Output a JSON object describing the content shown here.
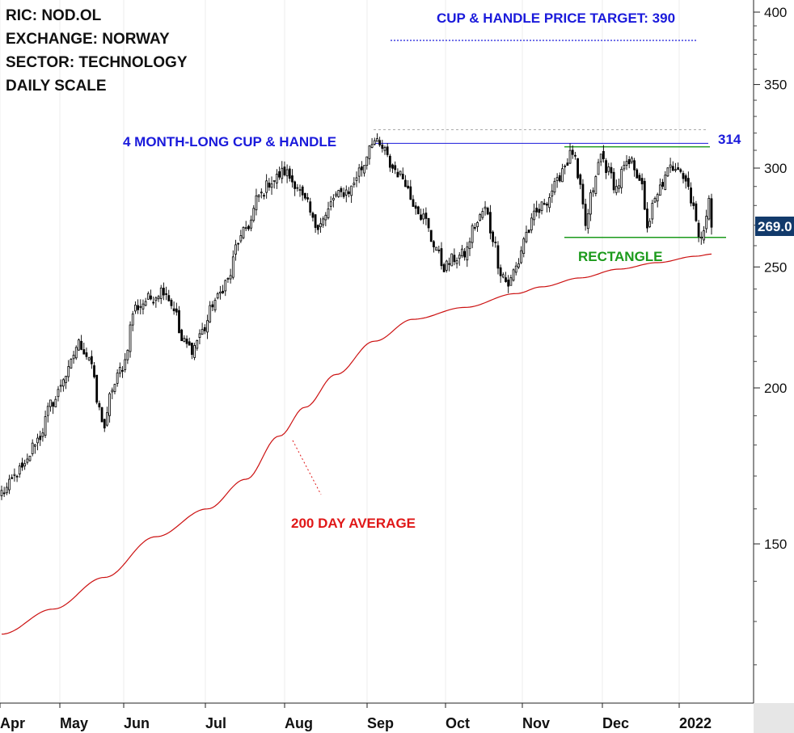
{
  "chart_data": {
    "type": "candlestick",
    "header_lines": [
      "RIC: NOD.OL",
      "EXCHANGE: NORWAY",
      "SECTOR: TECHNOLOGY",
      "DAILY SCALE"
    ],
    "y_scale": "log",
    "ylim": [
      115,
      410
    ],
    "y_ticks": [
      150,
      200,
      250,
      300,
      350,
      400
    ],
    "x_ticks": [
      "Apr",
      "May",
      "Jun",
      "Jul",
      "Aug",
      "Sep",
      "Oct",
      "Nov",
      "Dec",
      "2022"
    ],
    "last_price_label": "269.0",
    "annotations": {
      "price_target": "CUP & HANDLE PRICE TARGET: 390",
      "pattern": "4 MONTH-LONG CUP & HANDLE",
      "resistance_label": "314",
      "rectangle": "RECTANGLE",
      "moving_average": "200 DAY AVERAGE"
    },
    "levels": {
      "price_target": 390,
      "cup_resistance": 314,
      "rectangle_top": 312,
      "rectangle_bottom": 264,
      "high_reference": 322
    },
    "anchor_closes": [
      [
        0,
        165
      ],
      [
        8,
        172
      ],
      [
        14,
        182
      ],
      [
        20,
        195
      ],
      [
        25,
        205
      ],
      [
        30,
        217
      ],
      [
        34,
        212
      ],
      [
        38,
        192
      ],
      [
        40,
        186
      ],
      [
        43,
        200
      ],
      [
        47,
        208
      ],
      [
        52,
        232
      ],
      [
        58,
        236
      ],
      [
        63,
        240
      ],
      [
        67,
        232
      ],
      [
        70,
        218
      ],
      [
        74,
        215
      ],
      [
        78,
        222
      ],
      [
        83,
        235
      ],
      [
        88,
        244
      ],
      [
        92,
        262
      ],
      [
        96,
        270
      ],
      [
        100,
        285
      ],
      [
        105,
        293
      ],
      [
        110,
        298
      ],
      [
        114,
        292
      ],
      [
        118,
        282
      ],
      [
        122,
        270
      ],
      [
        125,
        273
      ],
      [
        130,
        285
      ],
      [
        135,
        288
      ],
      [
        140,
        300
      ],
      [
        144,
        316
      ],
      [
        148,
        311
      ],
      [
        152,
        300
      ],
      [
        156,
        295
      ],
      [
        160,
        282
      ],
      [
        164,
        274
      ],
      [
        168,
        261
      ],
      [
        172,
        250
      ],
      [
        176,
        254
      ],
      [
        180,
        256
      ],
      [
        184,
        270
      ],
      [
        188,
        278
      ],
      [
        191,
        264
      ],
      [
        194,
        248
      ],
      [
        197,
        242
      ],
      [
        200,
        250
      ],
      [
        204,
        266
      ],
      [
        208,
        276
      ],
      [
        212,
        283
      ],
      [
        215,
        290
      ],
      [
        219,
        302
      ],
      [
        222,
        309
      ],
      [
        225,
        288
      ],
      [
        227,
        270
      ],
      [
        230,
        289
      ],
      [
        233,
        307
      ],
      [
        236,
        298
      ],
      [
        239,
        289
      ],
      [
        242,
        300
      ],
      [
        245,
        303
      ],
      [
        248,
        295
      ],
      [
        251,
        270
      ],
      [
        254,
        282
      ],
      [
        257,
        292
      ],
      [
        260,
        300
      ],
      [
        263,
        302
      ],
      [
        266,
        293
      ],
      [
        269,
        281
      ],
      [
        271,
        262
      ],
      [
        273,
        270
      ],
      [
        275,
        282
      ],
      [
        276,
        269
      ]
    ],
    "ma200_anchors": [
      [
        0,
        127
      ],
      [
        20,
        133
      ],
      [
        40,
        141
      ],
      [
        60,
        152
      ],
      [
        80,
        160
      ],
      [
        95,
        169
      ],
      [
        108,
        183
      ],
      [
        118,
        193
      ],
      [
        130,
        205
      ],
      [
        145,
        218
      ],
      [
        160,
        227
      ],
      [
        180,
        232
      ],
      [
        200,
        238
      ],
      [
        210,
        241
      ],
      [
        225,
        245
      ],
      [
        240,
        249
      ],
      [
        255,
        252
      ],
      [
        270,
        255
      ],
      [
        276,
        256
      ]
    ],
    "n_bars": 277
  }
}
